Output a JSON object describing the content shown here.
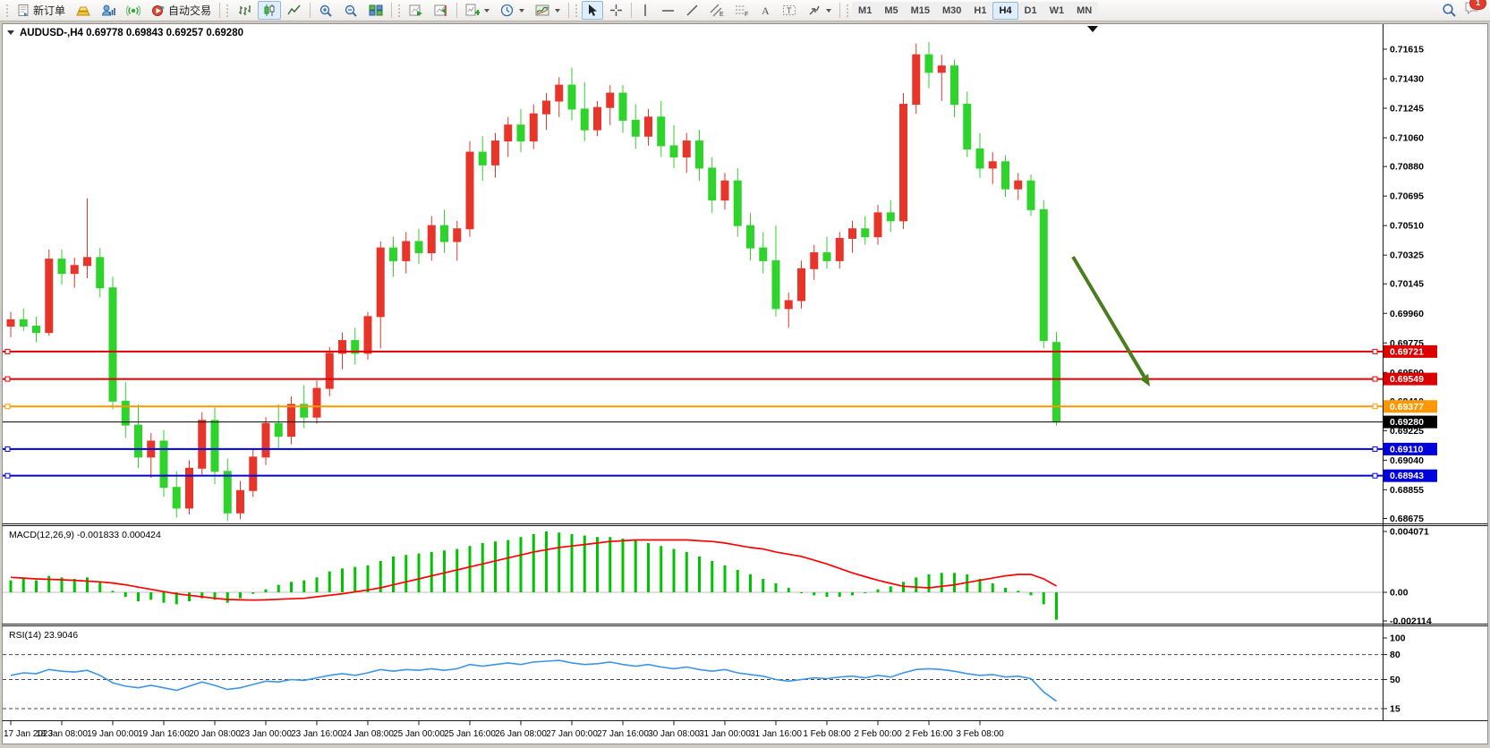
{
  "toolbar": {
    "new_order_label": "新订单",
    "autotrade_label": "自动交易",
    "timeframes": [
      "M1",
      "M5",
      "M15",
      "M30",
      "H1",
      "H4",
      "D1",
      "W1",
      "MN"
    ],
    "active_timeframe": "H4",
    "notification_count": "1"
  },
  "chart_data": {
    "type": "candlestick",
    "symbol_period": "AUDUSD-,H4",
    "ohlc_display": "0.69778 0.69843 0.69257 0.69280",
    "price_axis_ticks": [
      "0.71615",
      "0.71430",
      "0.71245",
      "0.71060",
      "0.70880",
      "0.70695",
      "0.70510",
      "0.70325",
      "0.70145",
      "0.69960",
      "0.69775",
      "0.69590",
      "0.69410",
      "0.69225",
      "0.69040",
      "0.68855",
      "0.68675"
    ],
    "time_labels": [
      "17 Jan 2023",
      "18 Jan 08:00",
      "19 Jan 00:00",
      "19 Jan 16:00",
      "20 Jan 08:00",
      "23 Jan 00:00",
      "23 Jan 16:00",
      "24 Jan 08:00",
      "25 Jan 00:00",
      "25 Jan 16:00",
      "26 Jan 08:00",
      "27 Jan 00:00",
      "27 Jan 16:00",
      "30 Jan 08:00",
      "31 Jan 00:00",
      "31 Jan 16:00",
      "1 Feb 08:00",
      "2 Feb 00:00",
      "2 Feb 16:00",
      "3 Feb 08:00"
    ],
    "hlines": [
      {
        "price": 0.69721,
        "label": "0.69721",
        "color": "#dd0000",
        "current": false
      },
      {
        "price": 0.69549,
        "label": "0.69549",
        "color": "#dd0000",
        "current": false
      },
      {
        "price": 0.69377,
        "label": "0.69377",
        "color": "#ff9800",
        "current": false
      },
      {
        "price": 0.6928,
        "label": "0.69280",
        "color": "#000000",
        "current": true
      },
      {
        "price": 0.6911,
        "label": "0.69110",
        "color": "#0000dd",
        "current": false
      },
      {
        "price": 0.68943,
        "label": "0.68943",
        "color": "#0000dd",
        "current": false
      }
    ],
    "candles": [
      [
        0.6988,
        0.6997,
        0.6981,
        0.6992
      ],
      [
        0.6992,
        0.6999,
        0.6985,
        0.6988
      ],
      [
        0.6988,
        0.6994,
        0.6978,
        0.6984
      ],
      [
        0.6984,
        0.7036,
        0.6982,
        0.703
      ],
      [
        0.703,
        0.7036,
        0.7014,
        0.7021
      ],
      [
        0.7021,
        0.7031,
        0.7012,
        0.7026
      ],
      [
        0.7026,
        0.7068,
        0.7018,
        0.7031
      ],
      [
        0.7031,
        0.7037,
        0.7006,
        0.7012
      ],
      [
        0.7012,
        0.7019,
        0.6936,
        0.6941
      ],
      [
        0.6941,
        0.6953,
        0.6918,
        0.6926
      ],
      [
        0.6926,
        0.6939,
        0.6899,
        0.6906
      ],
      [
        0.6906,
        0.6921,
        0.6893,
        0.6916
      ],
      [
        0.6916,
        0.6923,
        0.6881,
        0.6887
      ],
      [
        0.6887,
        0.6897,
        0.6868,
        0.6874
      ],
      [
        0.6874,
        0.6904,
        0.687,
        0.6899
      ],
      [
        0.6899,
        0.6934,
        0.6895,
        0.6929
      ],
      [
        0.6929,
        0.6937,
        0.6889,
        0.6897
      ],
      [
        0.6897,
        0.6905,
        0.6866,
        0.6871
      ],
      [
        0.6871,
        0.6891,
        0.6867,
        0.6885
      ],
      [
        0.6885,
        0.6911,
        0.6881,
        0.6906
      ],
      [
        0.6906,
        0.6931,
        0.6901,
        0.6927
      ],
      [
        0.6927,
        0.6939,
        0.6911,
        0.6919
      ],
      [
        0.6919,
        0.6944,
        0.6914,
        0.6939
      ],
      [
        0.6939,
        0.6951,
        0.6924,
        0.6931
      ],
      [
        0.6931,
        0.6954,
        0.6927,
        0.6949
      ],
      [
        0.6949,
        0.6975,
        0.6944,
        0.6971
      ],
      [
        0.6971,
        0.6984,
        0.6961,
        0.6979
      ],
      [
        0.6979,
        0.6987,
        0.6964,
        0.6971
      ],
      [
        0.6971,
        0.6997,
        0.6967,
        0.6994
      ],
      [
        0.6994,
        0.7041,
        0.6974,
        0.7037
      ],
      [
        0.7037,
        0.7044,
        0.7019,
        0.7029
      ],
      [
        0.7029,
        0.7047,
        0.7021,
        0.7041
      ],
      [
        0.7041,
        0.7049,
        0.7027,
        0.7034
      ],
      [
        0.7034,
        0.7057,
        0.7029,
        0.7051
      ],
      [
        0.7051,
        0.7061,
        0.7034,
        0.7041
      ],
      [
        0.7041,
        0.7054,
        0.7029,
        0.7049
      ],
      [
        0.7049,
        0.7104,
        0.7044,
        0.7097
      ],
      [
        0.7097,
        0.7107,
        0.7079,
        0.7089
      ],
      [
        0.7089,
        0.7109,
        0.7081,
        0.7104
      ],
      [
        0.7104,
        0.7119,
        0.7094,
        0.7114
      ],
      [
        0.7114,
        0.7124,
        0.7097,
        0.7104
      ],
      [
        0.7104,
        0.7127,
        0.7099,
        0.7121
      ],
      [
        0.7121,
        0.7134,
        0.7111,
        0.7129
      ],
      [
        0.7129,
        0.7144,
        0.7119,
        0.7139
      ],
      [
        0.7139,
        0.715,
        0.7117,
        0.7124
      ],
      [
        0.7124,
        0.7141,
        0.7104,
        0.7111
      ],
      [
        0.7111,
        0.7129,
        0.7107,
        0.7125
      ],
      [
        0.7125,
        0.7139,
        0.7114,
        0.7134
      ],
      [
        0.7134,
        0.7139,
        0.7109,
        0.7117
      ],
      [
        0.7117,
        0.7127,
        0.7099,
        0.7107
      ],
      [
        0.7107,
        0.7124,
        0.7101,
        0.7119
      ],
      [
        0.7119,
        0.7129,
        0.7094,
        0.7101
      ],
      [
        0.7101,
        0.7114,
        0.7087,
        0.7094
      ],
      [
        0.7094,
        0.7109,
        0.7084,
        0.7104
      ],
      [
        0.7104,
        0.7111,
        0.7079,
        0.7087
      ],
      [
        0.7087,
        0.7094,
        0.7059,
        0.7067
      ],
      [
        0.7067,
        0.7084,
        0.7061,
        0.7079
      ],
      [
        0.7079,
        0.7087,
        0.7044,
        0.7051
      ],
      [
        0.7051,
        0.7059,
        0.7029,
        0.7037
      ],
      [
        0.7037,
        0.7047,
        0.7021,
        0.7029
      ],
      [
        0.7029,
        0.7051,
        0.6994,
        0.6999
      ],
      [
        0.6999,
        0.7009,
        0.6987,
        0.7004
      ],
      [
        0.7004,
        0.7029,
        0.6999,
        0.7024
      ],
      [
        0.7024,
        0.7039,
        0.7017,
        0.7034
      ],
      [
        0.7034,
        0.7044,
        0.7024,
        0.7029
      ],
      [
        0.7029,
        0.7047,
        0.7024,
        0.7043
      ],
      [
        0.7043,
        0.7054,
        0.7034,
        0.7049
      ],
      [
        0.7049,
        0.7057,
        0.7039,
        0.7044
      ],
      [
        0.7044,
        0.7064,
        0.7039,
        0.7059
      ],
      [
        0.7059,
        0.7067,
        0.7047,
        0.7054
      ],
      [
        0.7054,
        0.7134,
        0.7049,
        0.7127
      ],
      [
        0.7127,
        0.7165,
        0.7121,
        0.7158
      ],
      [
        0.7158,
        0.7166,
        0.7137,
        0.7147
      ],
      [
        0.7147,
        0.7158,
        0.7129,
        0.7151
      ],
      [
        0.7151,
        0.7155,
        0.7119,
        0.7127
      ],
      [
        0.7127,
        0.7135,
        0.7094,
        0.7099
      ],
      [
        0.7099,
        0.7109,
        0.7081,
        0.7087
      ],
      [
        0.7087,
        0.7097,
        0.7077,
        0.7091
      ],
      [
        0.7091,
        0.7095,
        0.7069,
        0.7074
      ],
      [
        0.7074,
        0.7084,
        0.7067,
        0.7079
      ],
      [
        0.7079,
        0.7083,
        0.7057,
        0.7061
      ],
      [
        0.7061,
        0.7067,
        0.6974,
        0.6979
      ],
      [
        0.69778,
        0.69843,
        0.69257,
        0.6928
      ]
    ],
    "bull_color": "#e8352a",
    "bear_color": "#2ed32b",
    "macd": {
      "label": "MACD(12,26,9)",
      "values": "-0.001833 0.000424",
      "axis": [
        "0.004071",
        "0.00",
        "-0.002114"
      ],
      "histogram_color": "#00c400",
      "signal_color": "#ff0000",
      "histogram": [
        0.0008,
        0.0009,
        0.0008,
        0.0011,
        0.001,
        0.0009,
        0.001,
        0.0007,
        0.0001,
        -0.0003,
        -0.0006,
        -0.0005,
        -0.0007,
        -0.0008,
        -0.0006,
        -0.0004,
        -0.0005,
        -0.0007,
        -0.0004,
        -0.0001,
        0.0002,
        0.0005,
        0.0007,
        0.0008,
        0.001,
        0.0014,
        0.0016,
        0.0017,
        0.0018,
        0.0021,
        0.0024,
        0.0025,
        0.0026,
        0.0027,
        0.0028,
        0.0029,
        0.0031,
        0.0033,
        0.0034,
        0.0035,
        0.0037,
        0.0039,
        0.00407,
        0.004,
        0.0039,
        0.0038,
        0.0037,
        0.0037,
        0.0036,
        0.0035,
        0.0033,
        0.0031,
        0.0029,
        0.0027,
        0.0024,
        0.0021,
        0.0018,
        0.0015,
        0.0012,
        0.0009,
        0.0006,
        0.0003,
        0.0,
        -0.0002,
        -0.0003,
        -0.0003,
        -0.0002,
        0.0,
        0.0002,
        0.0004,
        0.0007,
        0.001,
        0.0012,
        0.0013,
        0.0013,
        0.0012,
        0.0009,
        0.0006,
        0.0003,
        0.0001,
        -0.0002,
        -0.0008,
        -0.001833
      ],
      "signal": [
        0.001,
        0.00095,
        0.0009,
        0.00087,
        0.00084,
        0.0008,
        0.00075,
        0.0007,
        0.00062,
        0.0005,
        0.00035,
        0.0002,
        5e-05,
        -0.0001,
        -0.0002,
        -0.0003,
        -0.0004,
        -0.00048,
        -0.0005,
        -0.00052,
        -0.0005,
        -0.00047,
        -0.00043,
        -0.0004,
        -0.0003,
        -0.0002,
        -0.0001,
        3e-05,
        0.00016,
        0.0003,
        0.0005,
        0.0007,
        0.0009,
        0.0011,
        0.0013,
        0.0015,
        0.0017,
        0.0019,
        0.0021,
        0.0023,
        0.0025,
        0.0027,
        0.00285,
        0.003,
        0.0031,
        0.0032,
        0.0033,
        0.0034,
        0.00345,
        0.0035,
        0.0035,
        0.0035,
        0.0035,
        0.0035,
        0.00345,
        0.0034,
        0.0033,
        0.00315,
        0.003,
        0.0029,
        0.0027,
        0.00255,
        0.0024,
        0.00215,
        0.0019,
        0.0016,
        0.0013,
        0.00105,
        0.0008,
        0.0006,
        0.0004,
        0.00035,
        0.0003,
        0.0004,
        0.0005,
        0.00065,
        0.0008,
        0.00095,
        0.0011,
        0.0012,
        0.0012,
        0.0009,
        0.000424
      ]
    },
    "rsi": {
      "label": "RSI(14)",
      "value": "23.9046",
      "line_color": "#3d95e8",
      "levels": [
        100,
        80,
        50,
        15
      ],
      "series": [
        55,
        58,
        57,
        62,
        60,
        59,
        61,
        55,
        46,
        42,
        40,
        43,
        40,
        37,
        42,
        47,
        43,
        38,
        40,
        44,
        48,
        47,
        50,
        49,
        52,
        55,
        57,
        55,
        58,
        62,
        60,
        62,
        61,
        63,
        61,
        63,
        68,
        66,
        68,
        70,
        68,
        71,
        72,
        73,
        70,
        68,
        69,
        71,
        68,
        66,
        68,
        65,
        63,
        65,
        62,
        60,
        62,
        58,
        56,
        54,
        50,
        48,
        50,
        52,
        51,
        53,
        54,
        52,
        55,
        53,
        58,
        62,
        63,
        62,
        60,
        57,
        55,
        56,
        53,
        54,
        51,
        35,
        23.9046
      ]
    },
    "annotation_arrow": {
      "from": [
        1199,
        287
      ],
      "to": [
        1285,
        432
      ],
      "color": "#4b7d1e"
    }
  }
}
